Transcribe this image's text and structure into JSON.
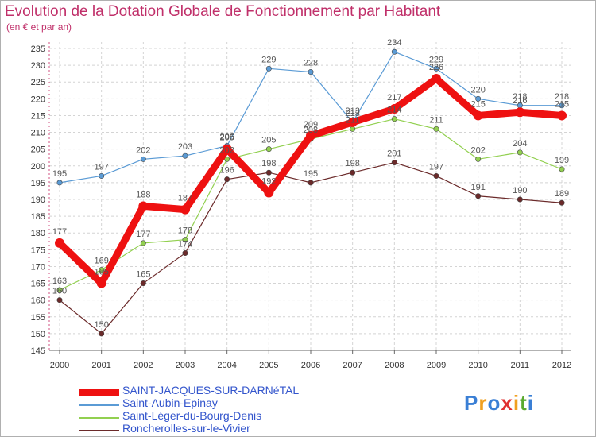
{
  "chart_data": {
    "type": "line",
    "title": "Evolution de la Dotation Globale de Fonctionnement par Habitant",
    "subtitle": "(en € et par an)",
    "xlabel": "",
    "ylabel": "",
    "ylim": [
      145,
      235
    ],
    "ystep": 5,
    "grid": true,
    "x": [
      "2000",
      "2001",
      "2002",
      "2003",
      "2004",
      "2005",
      "2006",
      "2007",
      "2008",
      "2009",
      "2010",
      "2011",
      "2012"
    ],
    "series": [
      {
        "name": "Saint-Aubin-Epinay",
        "color": "#5b9bd5",
        "values": [
          195,
          197,
          202,
          203,
          206,
          229,
          228,
          213,
          234,
          229,
          220,
          218,
          218
        ]
      },
      {
        "name": "Saint-Léger-du-Bourg-Denis",
        "color": "#92d050",
        "values": [
          163,
          169,
          177,
          178,
          202,
          205,
          208,
          211,
          214,
          211,
          202,
          204,
          199
        ]
      },
      {
        "name": "Roncherolles-sur-le-Vivier",
        "color": "#6b2a2a",
        "values": [
          160,
          150,
          165,
          174,
          196,
          198,
          195,
          198,
          201,
          197,
          191,
          190,
          189
        ]
      },
      {
        "name": "SAINT-JACQUES-SUR-DARNéTAL",
        "color": "#ee1111",
        "values": [
          177,
          165,
          188,
          187,
          205,
          192,
          209,
          213,
          217,
          226,
          215,
          216,
          215
        ]
      }
    ]
  },
  "legend": [
    {
      "label": "SAINT-JACQUES-SUR-DARNéTAL",
      "color": "#ee1111",
      "bold": true
    },
    {
      "label": "Saint-Aubin-Epinay",
      "color": "#5b9bd5",
      "bold": false
    },
    {
      "label": "Saint-Léger-du-Bourg-Denis",
      "color": "#92d050",
      "bold": false
    },
    {
      "label": "Roncherolles-sur-le-Vivier",
      "color": "#6b2a2a",
      "bold": false
    }
  ],
  "logo": {
    "text": "Proxiti",
    "letters": [
      "P",
      "r",
      "o",
      "x",
      "i",
      "t",
      "i"
    ],
    "colors": [
      "#3a7fd5",
      "#f0a020",
      "#3a7fd5",
      "#e03030",
      "#f0a020",
      "#5aaa30",
      "#3a7fd5"
    ]
  }
}
